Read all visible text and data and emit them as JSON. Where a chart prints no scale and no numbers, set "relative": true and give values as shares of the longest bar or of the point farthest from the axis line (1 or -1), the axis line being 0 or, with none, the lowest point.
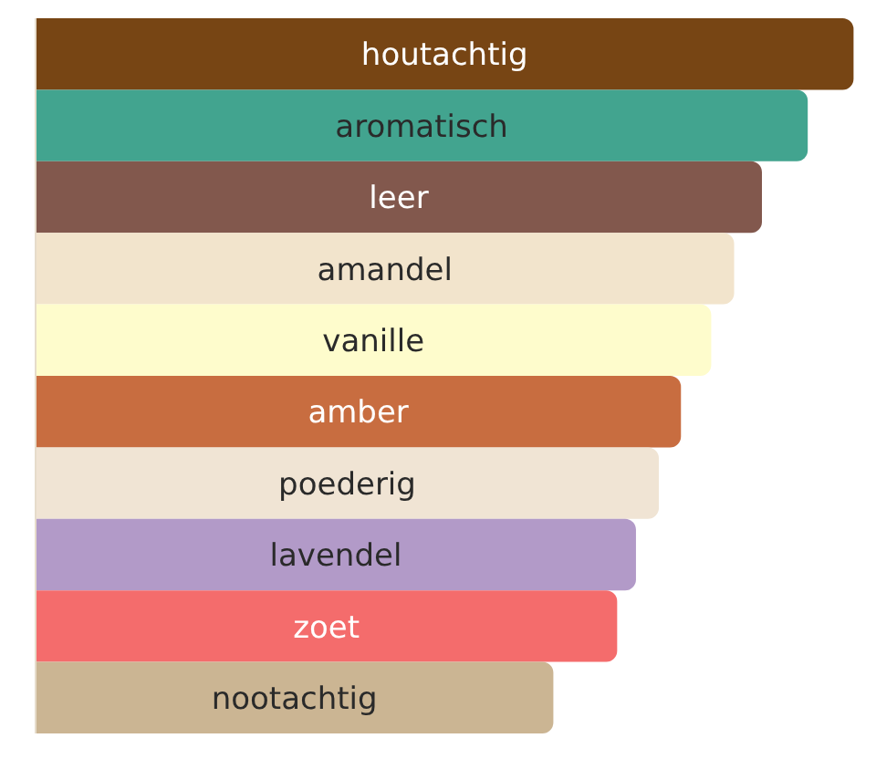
{
  "chart_data": {
    "type": "bar",
    "orientation": "horizontal",
    "relative": true,
    "categories": [
      "houtachtig",
      "aromatisch",
      "leer",
      "amandel",
      "vanille",
      "amber",
      "poederig",
      "lavendel",
      "zoet",
      "nootachtig"
    ],
    "values": [
      1,
      0.944,
      0.888,
      0.854,
      0.826,
      0.789,
      0.762,
      0.734,
      0.711,
      0.633
    ],
    "colors": [
      "#774514",
      "#42a48f",
      "#82584d",
      "#f2e4cc",
      "#fefccc",
      "#c86d40",
      "#f0e4d4",
      "#b29ac8",
      "#f46c6c",
      "#cbb593"
    ]
  }
}
